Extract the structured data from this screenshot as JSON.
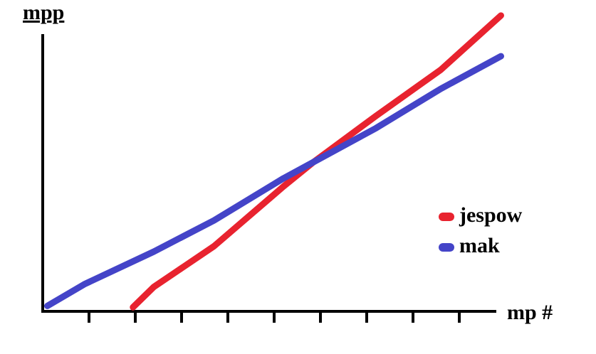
{
  "chart_data": {
    "type": "line",
    "y_label": "mpp",
    "x_label": "mp #",
    "xlim": [
      0,
      10
    ],
    "ylim": [
      0,
      11
    ],
    "xticks": [
      1,
      2,
      3,
      4,
      5,
      6,
      7,
      8,
      9
    ],
    "legend": "right",
    "series": [
      {
        "name": "jespow",
        "color": "#e8232f",
        "x": [
          1.95,
          2.4,
          3.7,
          5.2,
          5.85,
          7.2,
          8.6,
          9.9
        ],
        "values": [
          0.15,
          0.9,
          2.4,
          4.6,
          5.5,
          7.2,
          8.9,
          10.9
        ]
      },
      {
        "name": "mak",
        "color": "#4444c8",
        "x": [
          0.1,
          0.9,
          2.4,
          3.7,
          5.2,
          5.85,
          7.2,
          8.6,
          9.9
        ],
        "values": [
          0.2,
          1.0,
          2.2,
          3.35,
          4.9,
          5.5,
          6.75,
          8.2,
          9.4
        ]
      }
    ]
  }
}
